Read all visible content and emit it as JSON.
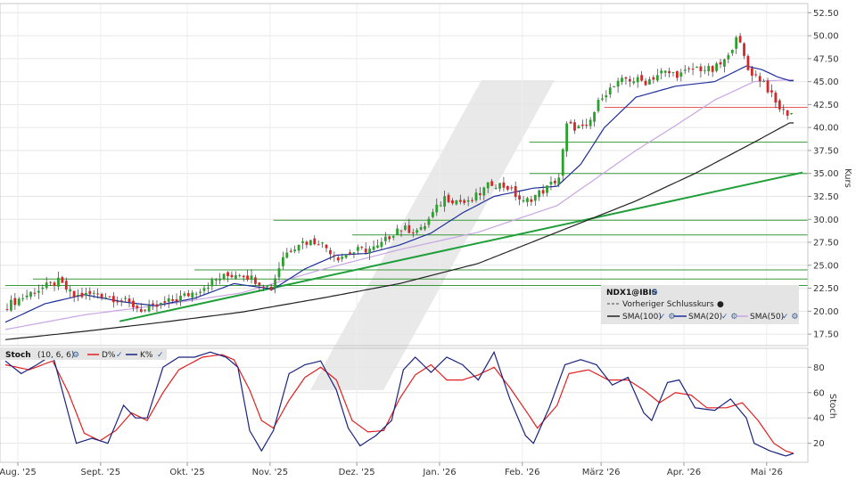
{
  "chart_data": [
    {
      "type": "candlestick",
      "symbol": "NDX1@IBIS",
      "ylabel": "Kurs",
      "ylim": [
        16.25,
        53.5
      ],
      "y_ticks": [
        "52.50",
        "50.00",
        "47.50",
        "45.00",
        "42.50",
        "40.00",
        "37.50",
        "35.00",
        "32.50",
        "30.00",
        "27.50",
        "25.00",
        "22.50",
        "20.00",
        "17.50"
      ],
      "x_ticks": [
        "Aug. '25",
        "Sept. '25",
        "Okt. '25",
        "Nov. '25",
        "Dez. '25",
        "Jan. '26",
        "Feb. '26",
        "März '26",
        "Apr. '26",
        "Mai '26"
      ],
      "anchors": {
        "close": [
          [
            0,
            20.4
          ],
          [
            8,
            22.2
          ],
          [
            14,
            23.2
          ],
          [
            18,
            21.6
          ],
          [
            24,
            21.9
          ],
          [
            30,
            21.2
          ],
          [
            36,
            20.0
          ],
          [
            42,
            21.0
          ],
          [
            48,
            22.0
          ],
          [
            55,
            23.6
          ],
          [
            60,
            24.2
          ],
          [
            66,
            23.0
          ],
          [
            68,
            22.5
          ],
          [
            71,
            26.0
          ],
          [
            75,
            27.5
          ],
          [
            80,
            27.6
          ],
          [
            85,
            25.9
          ],
          [
            90,
            26.6
          ],
          [
            95,
            26.9
          ],
          [
            100,
            29.0
          ],
          [
            106,
            28.8
          ],
          [
            112,
            32.4
          ],
          [
            118,
            31.7
          ],
          [
            124,
            34.0
          ],
          [
            128,
            33.5
          ],
          [
            132,
            31.8
          ],
          [
            138,
            33.4
          ],
          [
            141,
            34.6
          ],
          [
            143,
            40.2
          ],
          [
            148,
            39.8
          ],
          [
            152,
            43.6
          ],
          [
            158,
            45.3
          ],
          [
            163,
            45.0
          ],
          [
            167,
            46.0
          ],
          [
            172,
            45.8
          ],
          [
            176,
            46.5
          ],
          [
            180,
            46.2
          ],
          [
            184,
            47.6
          ],
          [
            186,
            50.2
          ],
          [
            189,
            46.3
          ],
          [
            193,
            45.0
          ],
          [
            196,
            42.6
          ],
          [
            198,
            41.7
          ],
          [
            199,
            41.6
          ]
        ],
        "sma20": [
          [
            0,
            18.8
          ],
          [
            10,
            20.8
          ],
          [
            20,
            21.8
          ],
          [
            30,
            21.0
          ],
          [
            38,
            20.6
          ],
          [
            48,
            21.4
          ],
          [
            58,
            23.0
          ],
          [
            68,
            22.4
          ],
          [
            76,
            24.6
          ],
          [
            84,
            26.1
          ],
          [
            92,
            26.3
          ],
          [
            100,
            27.2
          ],
          [
            108,
            28.5
          ],
          [
            116,
            30.7
          ],
          [
            124,
            32.5
          ],
          [
            134,
            33.4
          ],
          [
            140,
            33.6
          ],
          [
            146,
            36.0
          ],
          [
            152,
            40.0
          ],
          [
            160,
            43.3
          ],
          [
            170,
            44.5
          ],
          [
            180,
            45.0
          ],
          [
            188,
            46.7
          ],
          [
            192,
            46.3
          ],
          [
            196,
            45.5
          ],
          [
            199,
            45.1
          ]
        ],
        "sma50": [
          [
            0,
            18.0
          ],
          [
            20,
            19.6
          ],
          [
            40,
            20.7
          ],
          [
            60,
            22.0
          ],
          [
            80,
            24.5
          ],
          [
            100,
            26.7
          ],
          [
            120,
            28.6
          ],
          [
            140,
            31.5
          ],
          [
            150,
            34.5
          ],
          [
            160,
            37.5
          ],
          [
            170,
            40.2
          ],
          [
            180,
            43.0
          ],
          [
            190,
            45.0
          ],
          [
            199,
            45.2
          ]
        ],
        "sma100": [
          [
            0,
            16.9
          ],
          [
            20,
            17.8
          ],
          [
            40,
            18.8
          ],
          [
            60,
            19.9
          ],
          [
            80,
            21.4
          ],
          [
            100,
            23.0
          ],
          [
            120,
            25.2
          ],
          [
            140,
            28.6
          ],
          [
            160,
            32.0
          ],
          [
            175,
            35.0
          ],
          [
            190,
            38.4
          ],
          [
            199,
            40.5
          ]
        ]
      },
      "trendline": {
        "start": [
          29,
          18.9
        ],
        "end": [
          200,
          35.1
        ]
      },
      "support_lines": [
        {
          "y": 42.2,
          "x_start": 152,
          "color": "#e85a5a"
        },
        {
          "y": 38.4,
          "x_start": 133
        },
        {
          "y": 35.0,
          "x_start": 133
        },
        {
          "y": 29.9,
          "x_start": 68
        },
        {
          "y": 28.3,
          "x_start": 88
        },
        {
          "y": 24.5,
          "x_start": 48
        },
        {
          "y": 23.5,
          "x_start": 7
        },
        {
          "y": 22.8,
          "x_start": 0
        }
      ],
      "legend": {
        "title": "NDX1@IBIS",
        "prev_close": "Vorheriger Schlusskurs",
        "items": [
          {
            "name": "SMA(100)",
            "color": "#222222"
          },
          {
            "name": "SMA(20)",
            "color": "#1f2f9c"
          },
          {
            "name": "SMA(50)",
            "color": "#c9a5e3"
          }
        ]
      },
      "colors": {
        "up": "#2ca02c",
        "down": "#d62728",
        "trend": "#1f9e3a",
        "support": "#3a9a3a"
      }
    },
    {
      "type": "line",
      "title": "Stoch",
      "params": "(10, 6, 6)",
      "ylabel": "Stoch",
      "ylim": [
        5,
        95
      ],
      "y_ticks": [
        "80",
        "60",
        "40",
        "20"
      ],
      "series": [
        {
          "name": "D%",
          "color": "#e02020",
          "anchors": [
            [
              0,
              82
            ],
            [
              6,
              78
            ],
            [
              12,
              85
            ],
            [
              16,
              60
            ],
            [
              20,
              28
            ],
            [
              24,
              22
            ],
            [
              28,
              30
            ],
            [
              32,
              44
            ],
            [
              36,
              38
            ],
            [
              40,
              60
            ],
            [
              44,
              78
            ],
            [
              50,
              88
            ],
            [
              55,
              90
            ],
            [
              58,
              86
            ],
            [
              62,
              62
            ],
            [
              65,
              38
            ],
            [
              68,
              32
            ],
            [
              72,
              54
            ],
            [
              76,
              72
            ],
            [
              80,
              80
            ],
            [
              84,
              70
            ],
            [
              88,
              38
            ],
            [
              92,
              29
            ],
            [
              96,
              30
            ],
            [
              100,
              55
            ],
            [
              104,
              74
            ],
            [
              108,
              82
            ],
            [
              112,
              70
            ],
            [
              116,
              70
            ],
            [
              120,
              74
            ],
            [
              124,
              80
            ],
            [
              128,
              64
            ],
            [
              132,
              46
            ],
            [
              135,
              32
            ],
            [
              140,
              50
            ],
            [
              143,
              75
            ],
            [
              148,
              78
            ],
            [
              153,
              70
            ],
            [
              158,
              70
            ],
            [
              162,
              62
            ],
            [
              166,
              52
            ],
            [
              170,
              60
            ],
            [
              174,
              58
            ],
            [
              178,
              48
            ],
            [
              183,
              48
            ],
            [
              187,
              52
            ],
            [
              191,
              38
            ],
            [
              195,
              20
            ],
            [
              198,
              14
            ],
            [
              200,
              12
            ]
          ]
        },
        {
          "name": "K%",
          "color": "#1a237e",
          "anchors": [
            [
              0,
              85
            ],
            [
              4,
              75
            ],
            [
              8,
              82
            ],
            [
              12,
              90
            ],
            [
              15,
              55
            ],
            [
              18,
              20
            ],
            [
              22,
              24
            ],
            [
              26,
              20
            ],
            [
              30,
              50
            ],
            [
              33,
              40
            ],
            [
              36,
              40
            ],
            [
              40,
              80
            ],
            [
              44,
              88
            ],
            [
              48,
              88
            ],
            [
              52,
              92
            ],
            [
              56,
              88
            ],
            [
              59,
              80
            ],
            [
              62,
              30
            ],
            [
              65,
              14
            ],
            [
              68,
              30
            ],
            [
              72,
              75
            ],
            [
              76,
              82
            ],
            [
              80,
              85
            ],
            [
              84,
              62
            ],
            [
              87,
              32
            ],
            [
              90,
              18
            ],
            [
              94,
              26
            ],
            [
              98,
              38
            ],
            [
              101,
              78
            ],
            [
              104,
              88
            ],
            [
              108,
              76
            ],
            [
              112,
              88
            ],
            [
              116,
              82
            ],
            [
              120,
              70
            ],
            [
              124,
              92
            ],
            [
              128,
              55
            ],
            [
              132,
              26
            ],
            [
              134,
              20
            ],
            [
              138,
              48
            ],
            [
              142,
              82
            ],
            [
              146,
              86
            ],
            [
              150,
              82
            ],
            [
              154,
              66
            ],
            [
              158,
              72
            ],
            [
              162,
              44
            ],
            [
              164,
              38
            ],
            [
              168,
              68
            ],
            [
              171,
              70
            ],
            [
              175,
              48
            ],
            [
              180,
              46
            ],
            [
              184,
              55
            ],
            [
              188,
              40
            ],
            [
              190,
              20
            ],
            [
              194,
              14
            ],
            [
              198,
              10
            ],
            [
              200,
              12
            ]
          ]
        }
      ]
    }
  ]
}
